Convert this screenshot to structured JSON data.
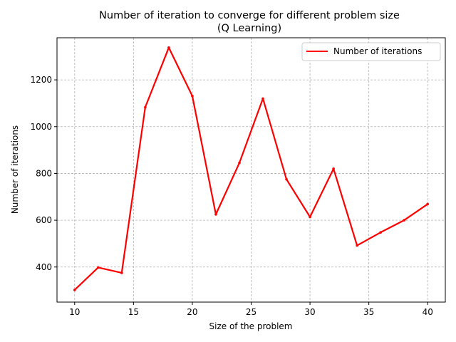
{
  "chart_data": {
    "type": "line",
    "title": "Number of iteration to converge for different problem size",
    "subtitle": "(Q Learning)",
    "xlabel": "Size of the problem",
    "ylabel": "Number of iterations",
    "xlim": [
      8.5,
      41.5
    ],
    "ylim": [
      250,
      1380
    ],
    "xticks": [
      10,
      15,
      20,
      25,
      30,
      35,
      40
    ],
    "yticks": [
      400,
      600,
      800,
      1000,
      1200
    ],
    "grid": true,
    "legend_position": "top-right",
    "series": [
      {
        "name": "Number of iterations",
        "color": "#ff0000",
        "x": [
          10,
          12,
          14,
          16,
          18,
          20,
          22,
          24,
          26,
          28,
          30,
          32,
          34,
          36,
          38,
          40
        ],
        "y": [
          302,
          398,
          375,
          1083,
          1338,
          1131,
          625,
          845,
          1120,
          775,
          614,
          820,
          492,
          548,
          600,
          669
        ]
      }
    ]
  }
}
